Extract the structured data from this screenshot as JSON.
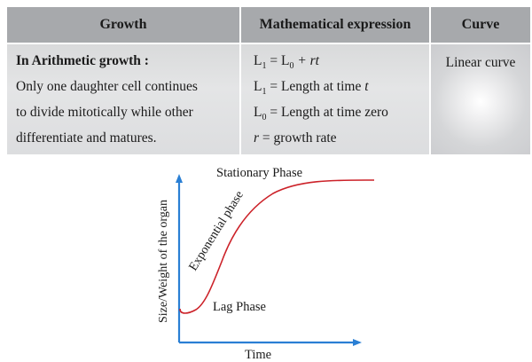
{
  "table": {
    "headers": [
      "Growth",
      "Mathematical expression",
      "Curve"
    ],
    "growth_lines": [
      "In Arithmetic growth :",
      "Only one daughter cell continues",
      "to divide mitotically while other",
      "differentiate and matures."
    ],
    "expr": {
      "l1_var": "L",
      "l1_sub": "1",
      "eq": " = ",
      "l0_var": "L",
      "l0_sub": "0",
      "plus_rt": " + rt",
      "l1_def": " = Length at  time ",
      "t": "t",
      "l0_def": " = Length at time zero",
      "r_var": "r",
      "r_def": " = growth rate"
    },
    "curve": "Linear curve"
  },
  "figure": {
    "y_label": "Size/Weight of the organ",
    "x_label": "Time",
    "phases": {
      "stationary": "Stationary Phase",
      "exponential": "Exponential phase",
      "lag": "Lag Phase"
    }
  }
}
